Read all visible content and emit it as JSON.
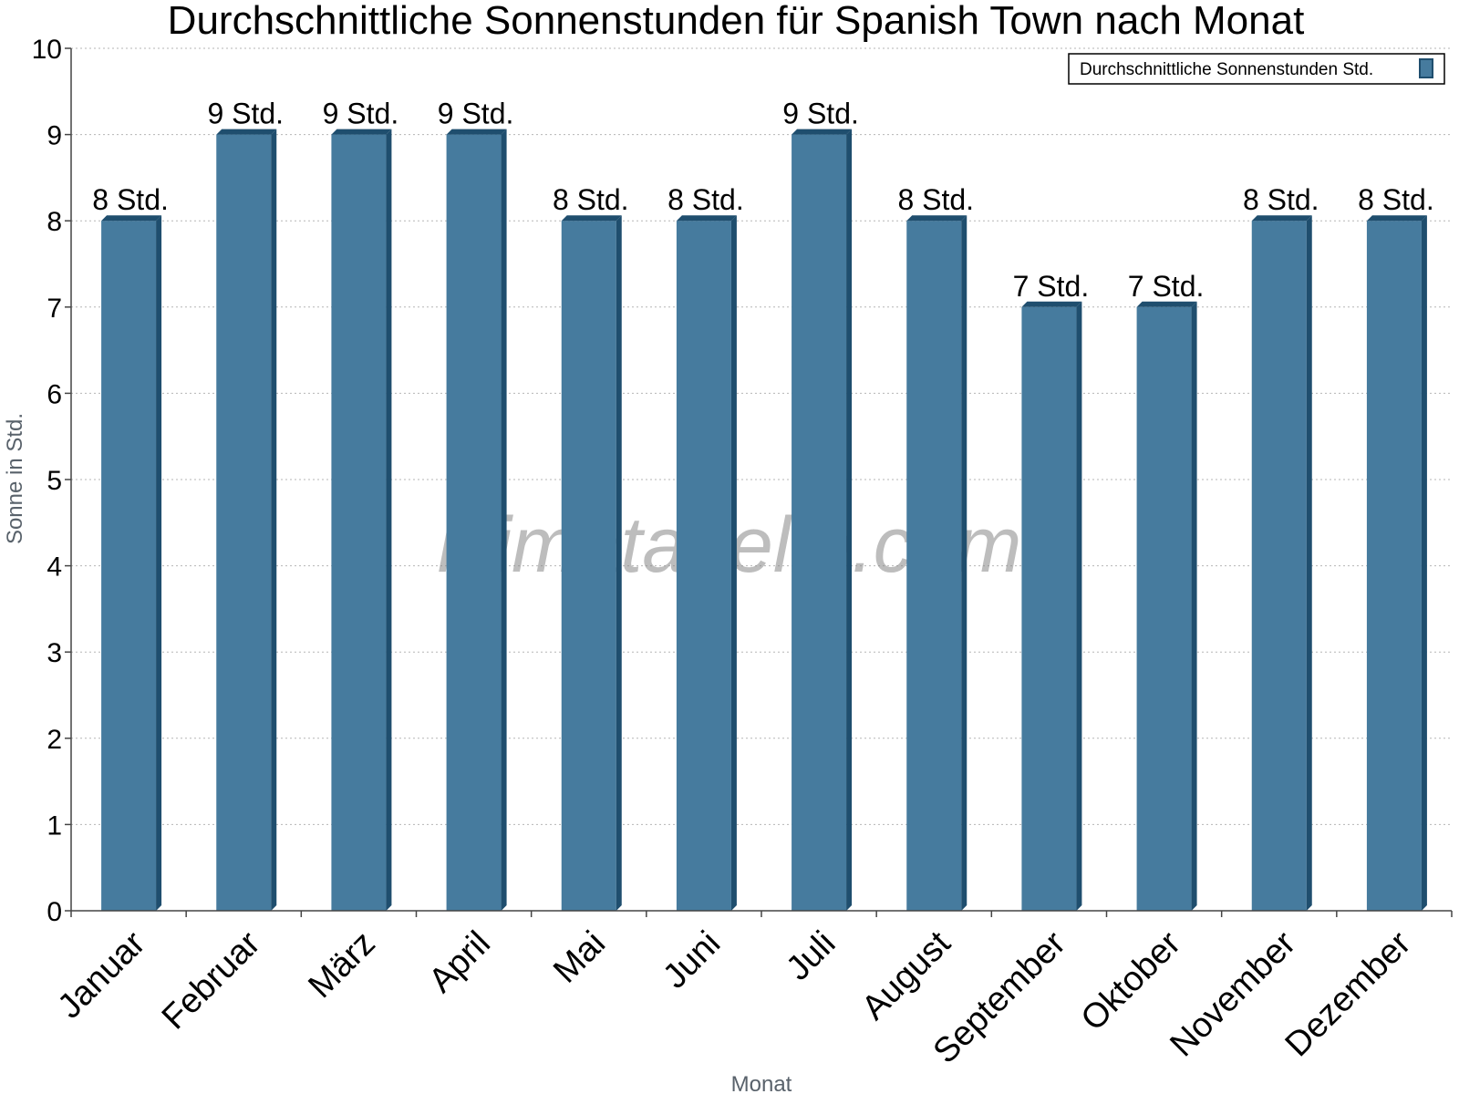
{
  "chart_data": {
    "type": "bar",
    "title": "Durchschnittliche Sonnenstunden für Spanish Town nach Monat",
    "xlabel": "Monat",
    "ylabel": "Sonne in Std.",
    "ylim": [
      0,
      10
    ],
    "yticks": [
      0,
      1,
      2,
      3,
      4,
      5,
      6,
      7,
      8,
      9,
      10
    ],
    "grid": true,
    "legend_position": "top-right",
    "categories": [
      "Januar",
      "Februar",
      "März",
      "April",
      "Mai",
      "Juni",
      "Juli",
      "August",
      "September",
      "Oktober",
      "November",
      "Dezember"
    ],
    "series": [
      {
        "name": "Durchschnittliche Sonnenstunden Std.",
        "values": [
          8,
          9,
          9,
          9,
          8,
          8,
          9,
          8,
          7,
          7,
          8,
          8
        ],
        "labels": [
          "8 Std.",
          "9 Std.",
          "9 Std.",
          "9 Std.",
          "8 Std.",
          "8 Std.",
          "9 Std.",
          "8 Std.",
          "7 Std.",
          "7 Std.",
          "8 Std.",
          "8 Std."
        ],
        "color": "#467b9e",
        "side_color": "#1f4e6e"
      }
    ]
  },
  "watermark": "klimatabelle.com"
}
